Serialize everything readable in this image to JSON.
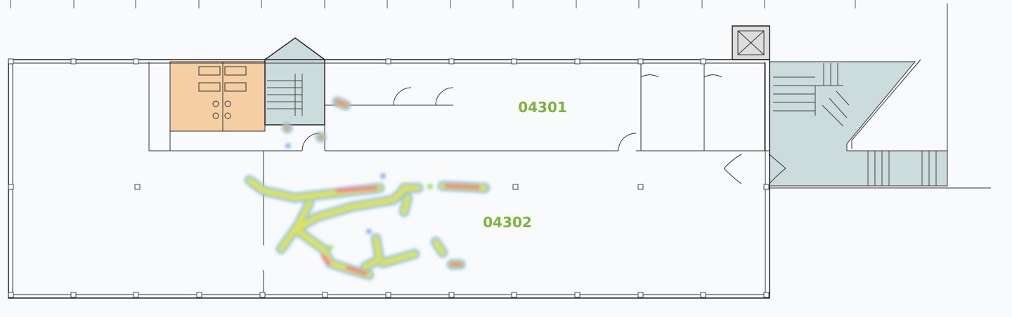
{
  "rooms": [
    {
      "label": "04301"
    },
    {
      "label": "04302"
    }
  ]
}
